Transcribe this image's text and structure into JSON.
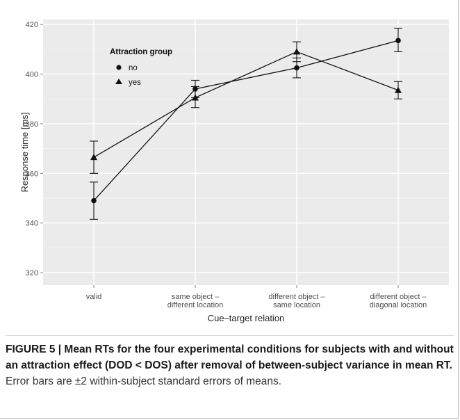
{
  "chart_data": {
    "type": "line",
    "categories": [
      [
        "valid"
      ],
      [
        "same object –",
        "different location"
      ],
      [
        "different object –",
        "same location"
      ],
      [
        "different object –",
        "diagonal location"
      ]
    ],
    "xlabel": "Cue–target relation",
    "ylabel": "Response time [ms]",
    "ylim": [
      315,
      422
    ],
    "yticks": [
      320,
      340,
      360,
      380,
      400,
      420
    ],
    "grid": true,
    "legend": {
      "title": "Attraction group",
      "placement": "top-left",
      "entries": [
        {
          "label": "no",
          "marker": "circle"
        },
        {
          "label": "yes",
          "marker": "triangle"
        }
      ]
    },
    "series": [
      {
        "name": "no",
        "marker": "circle",
        "values": [
          349,
          394,
          402.5,
          413.5
        ],
        "error_low": [
          341.5,
          390.5,
          398.5,
          409
        ],
        "error_high": [
          356.5,
          397.5,
          406.5,
          418.5
        ]
      },
      {
        "name": "yes",
        "marker": "triangle",
        "values": [
          366.5,
          390.5,
          409,
          393.5
        ],
        "error_low": [
          360,
          386.5,
          405,
          390
        ],
        "error_high": [
          373,
          395,
          413,
          397
        ]
      }
    ],
    "colors": {
      "panel": "#ebebeb",
      "grid_major": "#ffffff",
      "grid_minor": "#f4f4f4",
      "series": "#111111"
    }
  },
  "caption": {
    "label": "FIGURE 5 | Mean RTs for the four experimental conditions for subjects with and without an attraction effect (DOD < DOS) after removal of between-subject variance in mean RT.",
    "text": " Error bars are ±2 within-subject standard errors of means."
  }
}
